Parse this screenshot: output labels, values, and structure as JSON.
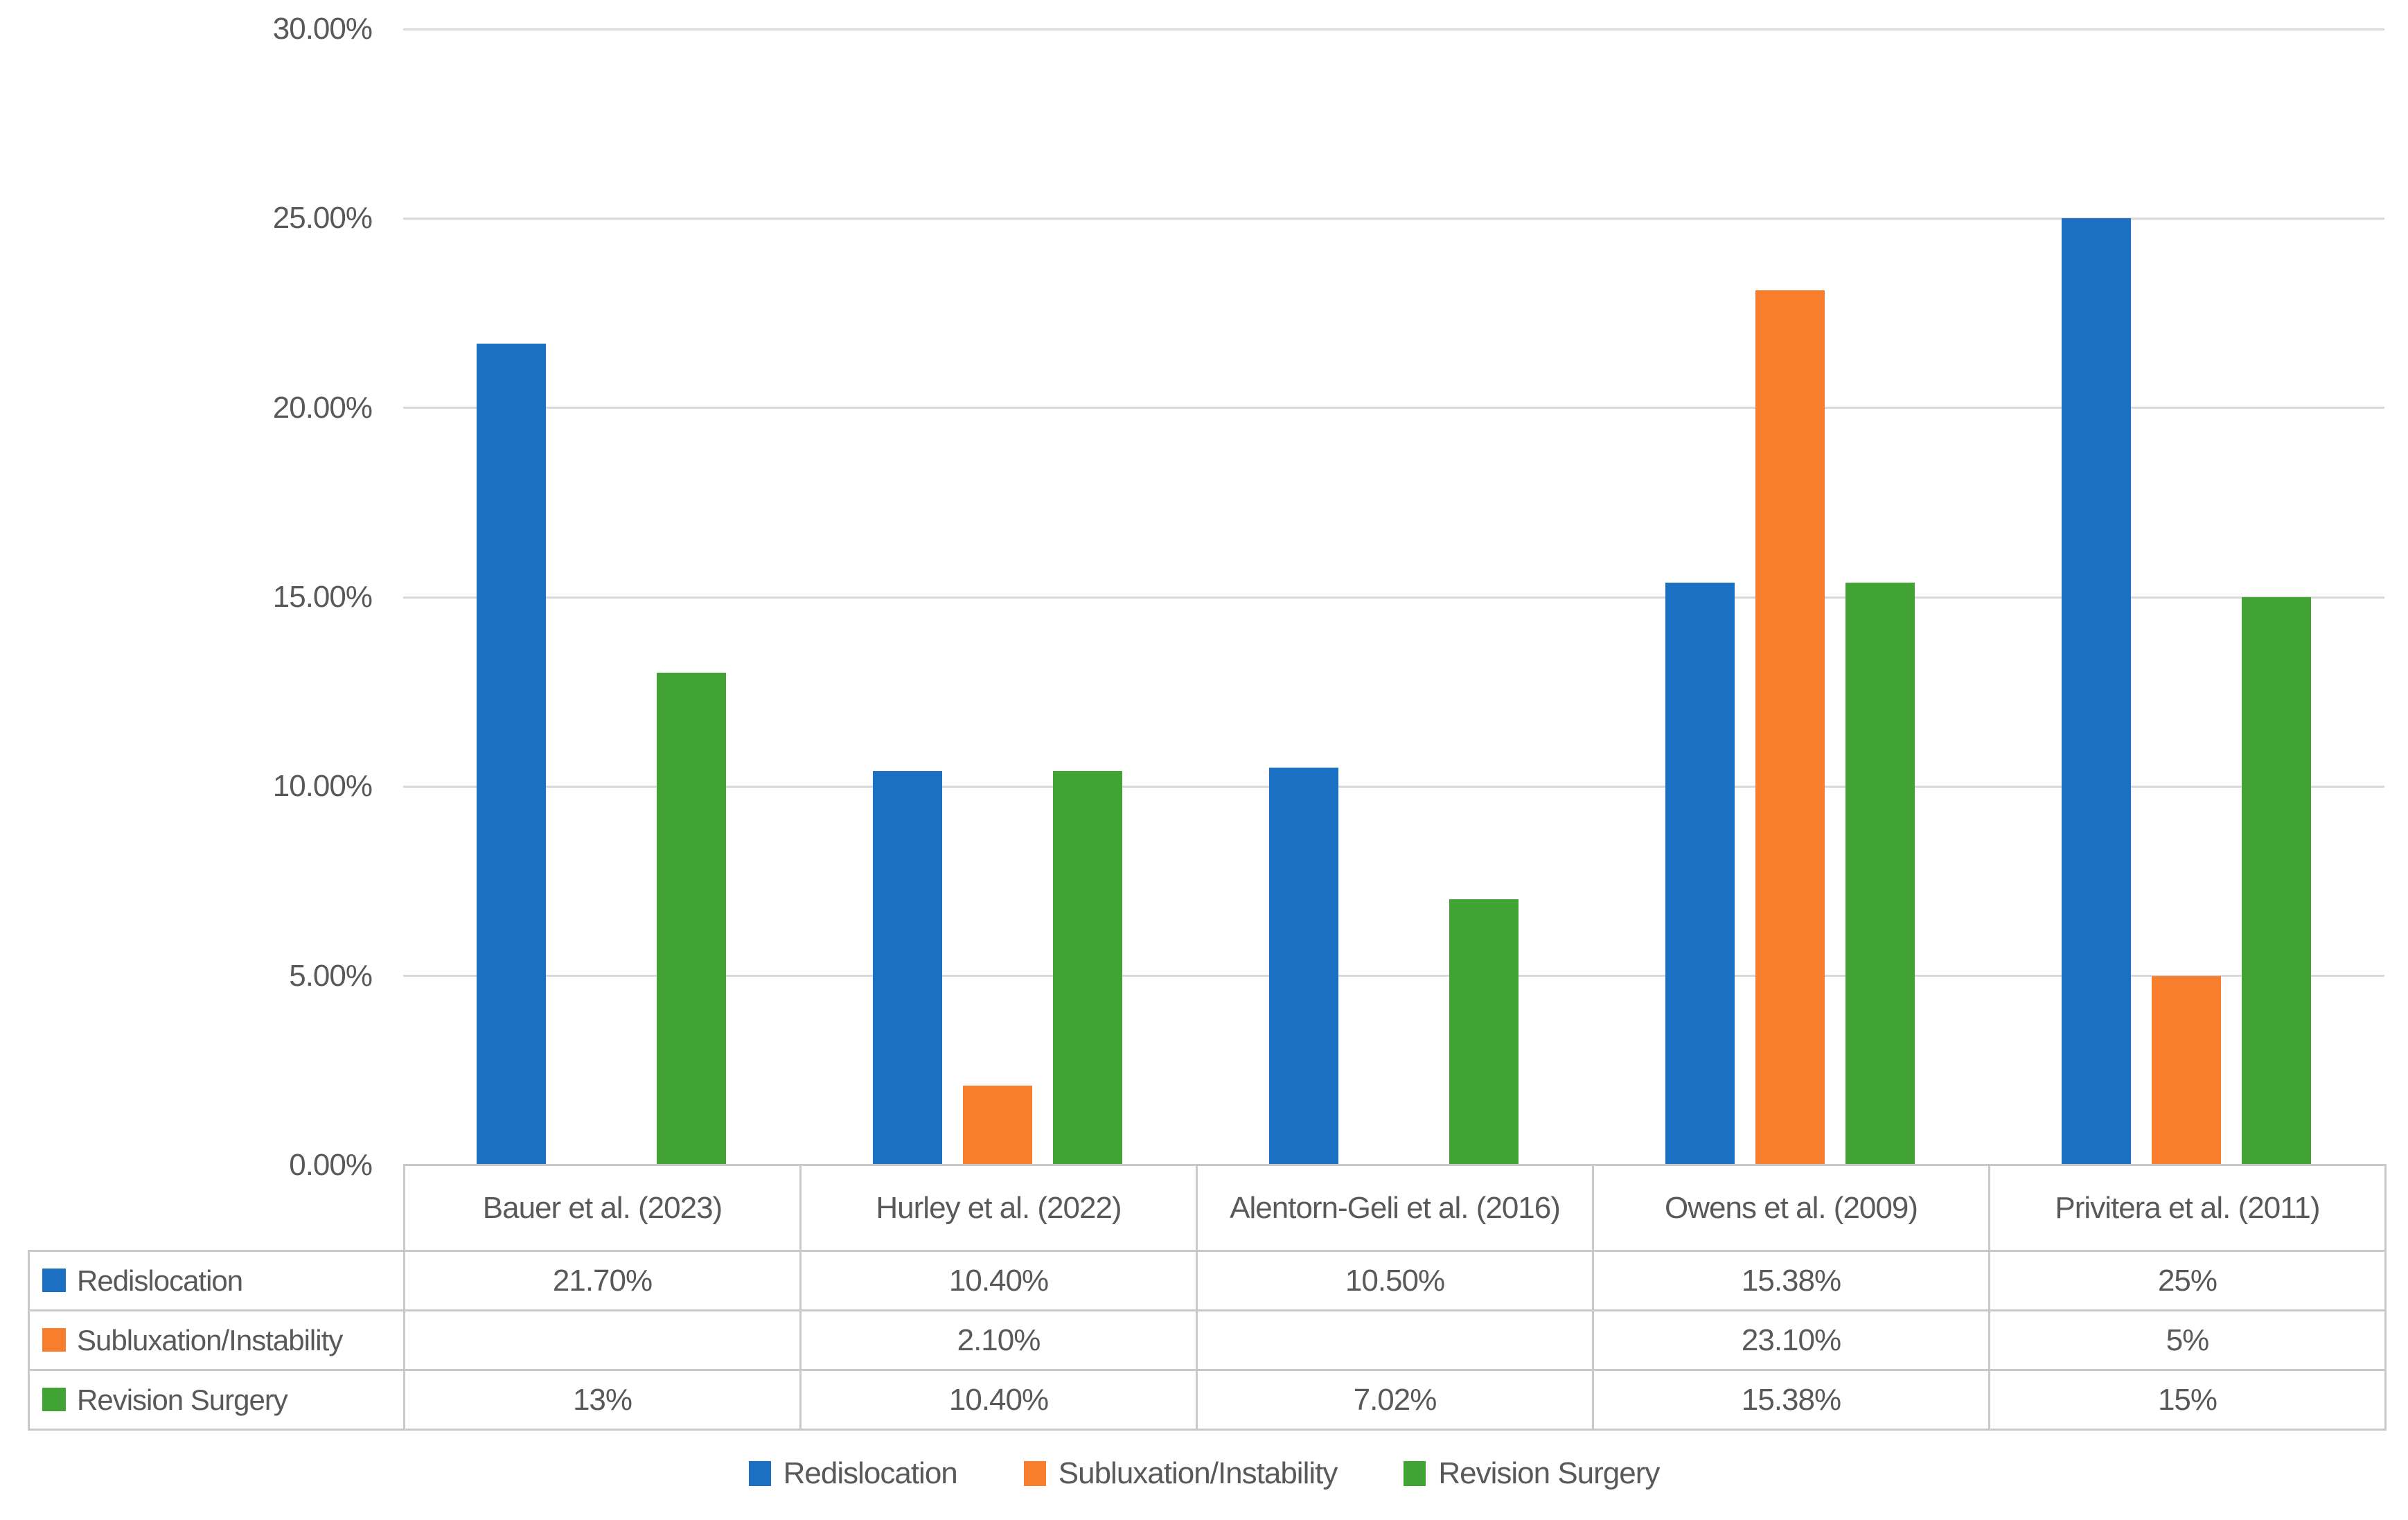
{
  "chart_data": {
    "type": "bar",
    "title": "",
    "xlabel": "",
    "ylabel": "",
    "categories": [
      "Bauer et al. (2023)",
      "Hurley et al. (2022)",
      "Alentorn-Geli et al. (2016)",
      "Owens et al. (2009)",
      "Privitera et al. (2011)"
    ],
    "series": [
      {
        "name": "Redislocation",
        "color": "#1c70c4",
        "values": [
          21.7,
          10.4,
          10.5,
          15.38,
          25
        ],
        "display": [
          "21.70%",
          "10.40%",
          "10.50%",
          "15.38%",
          "25%"
        ]
      },
      {
        "name": "Subluxation/Instability",
        "color": "#f87d2c",
        "values": [
          null,
          2.1,
          null,
          23.1,
          5
        ],
        "display": [
          "",
          "2.10%",
          "",
          "23.10%",
          "5%"
        ]
      },
      {
        "name": "Revision Surgery",
        "color": "#42a335",
        "values": [
          13,
          10.4,
          7.02,
          15.38,
          15
        ],
        "display": [
          "13%",
          "10.40%",
          "7.02%",
          "15.38%",
          "15%"
        ]
      }
    ],
    "ylim": [
      0,
      30
    ],
    "ytick_step": 5,
    "ytick_labels": [
      "0.00%",
      "5.00%",
      "10.00%",
      "15.00%",
      "20.00%",
      "25.00%",
      "30.00%"
    ],
    "grid": true,
    "legend_position": "bottom",
    "data_table_shown": true
  },
  "colors": {
    "text": "#595959",
    "gridline": "#d9d9d9",
    "table_border": "#c9c9c9",
    "background": "#ffffff"
  }
}
